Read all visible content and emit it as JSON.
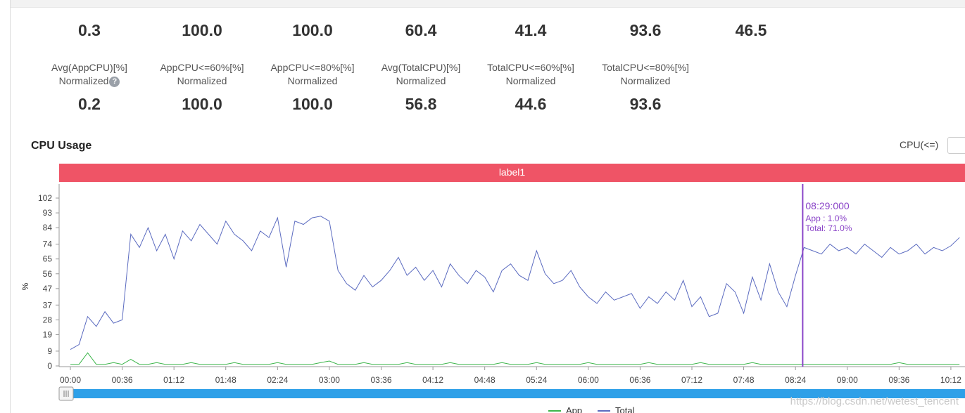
{
  "metrics_top": [
    {
      "value": "0.3"
    },
    {
      "value": "100.0"
    },
    {
      "value": "100.0"
    },
    {
      "value": "60.4"
    },
    {
      "value": "41.4"
    },
    {
      "value": "93.6"
    },
    {
      "value": "46.5"
    }
  ],
  "metrics_normalized": [
    {
      "label": "Avg(AppCPU)[%]",
      "sub": "Normalized",
      "value": "0.2"
    },
    {
      "label": "AppCPU<=60%[%]",
      "sub": "Normalized",
      "value": "100.0"
    },
    {
      "label": "AppCPU<=80%[%]",
      "sub": "Normalized",
      "value": "100.0"
    },
    {
      "label": "Avg(TotalCPU)[%]",
      "sub": "Normalized",
      "value": "56.8"
    },
    {
      "label": "TotalCPU<=60%[%]",
      "sub": "Normalized",
      "value": "44.6"
    },
    {
      "label": "TotalCPU<=80%[%]",
      "sub": "Normalized",
      "value": "93.6"
    }
  ],
  "filter_label": "CPU(<=)",
  "watermark": "https://blog.csdn.net/wetest_tencent",
  "chart_data": {
    "type": "line",
    "title": "CPU Usage",
    "band_label": "label1",
    "band_color": "#ef5466",
    "y_label": "%",
    "xlim": [
      0,
      622
    ],
    "ylim": [
      0,
      102
    ],
    "yticks": [
      0,
      9,
      19,
      28,
      37,
      47,
      56,
      65,
      74,
      84,
      93,
      102
    ],
    "xticks": [
      {
        "value": 0,
        "label": "00:00"
      },
      {
        "value": 36,
        "label": "00:36"
      },
      {
        "value": 72,
        "label": "01:12"
      },
      {
        "value": 108,
        "label": "01:48"
      },
      {
        "value": 144,
        "label": "02:24"
      },
      {
        "value": 180,
        "label": "03:00"
      },
      {
        "value": 216,
        "label": "03:36"
      },
      {
        "value": 252,
        "label": "04:12"
      },
      {
        "value": 288,
        "label": "04:48"
      },
      {
        "value": 324,
        "label": "05:24"
      },
      {
        "value": 360,
        "label": "06:00"
      },
      {
        "value": 396,
        "label": "06:36"
      },
      {
        "value": 432,
        "label": "07:12"
      },
      {
        "value": 468,
        "label": "07:48"
      },
      {
        "value": 504,
        "label": "08:24"
      },
      {
        "value": 540,
        "label": "09:00"
      },
      {
        "value": 576,
        "label": "09:36"
      },
      {
        "value": 612,
        "label": "10:12"
      }
    ],
    "x": [
      0,
      6,
      12,
      18,
      24,
      30,
      36,
      42,
      48,
      54,
      60,
      66,
      72,
      78,
      84,
      90,
      96,
      102,
      108,
      114,
      120,
      126,
      132,
      138,
      144,
      150,
      156,
      162,
      168,
      174,
      180,
      186,
      192,
      198,
      204,
      210,
      216,
      222,
      228,
      234,
      240,
      246,
      252,
      258,
      264,
      270,
      276,
      282,
      288,
      294,
      300,
      306,
      312,
      318,
      324,
      330,
      336,
      342,
      348,
      354,
      360,
      366,
      372,
      378,
      384,
      390,
      396,
      402,
      408,
      414,
      420,
      426,
      432,
      438,
      444,
      450,
      456,
      462,
      468,
      474,
      480,
      486,
      492,
      498,
      504,
      510,
      516,
      522,
      528,
      534,
      540,
      546,
      552,
      558,
      564,
      570,
      576,
      582,
      588,
      594,
      600,
      606,
      612,
      618
    ],
    "series": [
      {
        "name": "App",
        "color": "#3cb54a",
        "values": [
          1,
          1,
          8,
          1,
          1,
          2,
          1,
          4,
          1,
          1,
          2,
          1,
          1,
          1,
          2,
          1,
          1,
          1,
          1,
          2,
          1,
          1,
          1,
          1,
          2,
          1,
          1,
          1,
          1,
          2,
          3,
          1,
          1,
          1,
          2,
          1,
          1,
          1,
          1,
          2,
          1,
          1,
          1,
          1,
          2,
          1,
          1,
          1,
          1,
          1,
          2,
          1,
          1,
          1,
          2,
          1,
          1,
          1,
          1,
          1,
          2,
          1,
          1,
          1,
          1,
          1,
          1,
          2,
          1,
          1,
          1,
          1,
          1,
          2,
          1,
          1,
          1,
          1,
          1,
          2,
          1,
          1,
          1,
          1,
          1,
          1,
          1,
          1,
          1,
          1,
          1,
          1,
          1,
          1,
          1,
          1,
          2,
          1,
          1,
          1,
          1,
          1,
          1,
          1
        ]
      },
      {
        "name": "Total",
        "color": "#5b6bc0",
        "values": [
          10,
          13,
          30,
          24,
          33,
          26,
          28,
          80,
          72,
          84,
          70,
          80,
          65,
          82,
          76,
          86,
          80,
          74,
          88,
          80,
          76,
          70,
          82,
          78,
          90,
          60,
          88,
          86,
          90,
          91,
          88,
          58,
          50,
          46,
          55,
          48,
          52,
          58,
          66,
          55,
          60,
          52,
          58,
          48,
          62,
          55,
          50,
          58,
          54,
          45,
          58,
          62,
          55,
          52,
          70,
          56,
          50,
          52,
          58,
          48,
          42,
          38,
          45,
          40,
          42,
          44,
          35,
          42,
          38,
          45,
          40,
          52,
          36,
          42,
          30,
          32,
          50,
          45,
          32,
          54,
          40,
          62,
          45,
          36,
          55,
          72,
          70,
          68,
          74,
          70,
          72,
          68,
          74,
          70,
          66,
          72,
          68,
          70,
          74,
          68,
          72,
          70,
          73,
          78
        ]
      }
    ],
    "cursor": {
      "x": 509,
      "time": "08:29:000",
      "app": "App : 1.0%",
      "total": "Total: 71.0%",
      "color": "#8a44c8"
    }
  }
}
